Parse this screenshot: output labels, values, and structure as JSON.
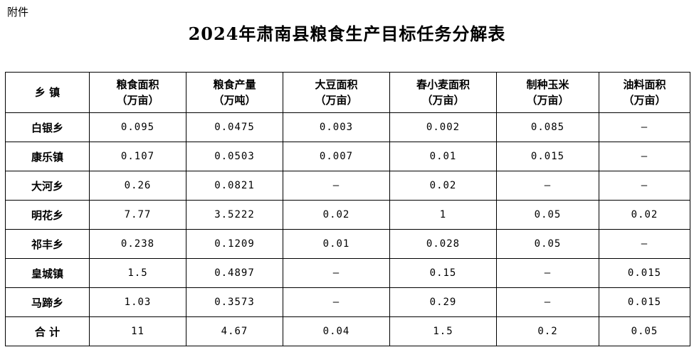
{
  "attachment_label": "附件",
  "title": "2024年肃南县粮食生产目标任务分解表",
  "table": {
    "headers": [
      {
        "line1": "乡 镇",
        "line2": ""
      },
      {
        "line1": "粮食面积",
        "line2": "（万亩）"
      },
      {
        "line1": "粮食产量",
        "line2": "（万吨）"
      },
      {
        "line1": "大豆面积",
        "line2": "（万亩）"
      },
      {
        "line1": "春小麦面积",
        "line2": "（万亩）"
      },
      {
        "line1": "制种玉米",
        "line2": "（万亩）"
      },
      {
        "line1": "油料面积",
        "line2": "（万亩）"
      }
    ],
    "rows": [
      [
        "白银乡",
        "0.095",
        "0.0475",
        "0.003",
        "0.002",
        "0.085",
        "–"
      ],
      [
        "康乐镇",
        "0.107",
        "0.0503",
        "0.007",
        "0.01",
        "0.015",
        "–"
      ],
      [
        "大河乡",
        "0.26",
        "0.0821",
        "–",
        "0.02",
        "–",
        "–"
      ],
      [
        "明花乡",
        "7.77",
        "3.5222",
        "0.02",
        "1",
        "0.05",
        "0.02"
      ],
      [
        "祁丰乡",
        "0.238",
        "0.1209",
        "0.01",
        "0.028",
        "0.05",
        "–"
      ],
      [
        "皇城镇",
        "1.5",
        "0.4897",
        "–",
        "0.15",
        "–",
        "0.015"
      ],
      [
        "马蹄乡",
        "1.03",
        "0.3573",
        "–",
        "0.29",
        "–",
        "0.015"
      ],
      [
        "合 计",
        "11",
        "4.67",
        "0.04",
        "1.5",
        "0.2",
        "0.05"
      ]
    ]
  }
}
